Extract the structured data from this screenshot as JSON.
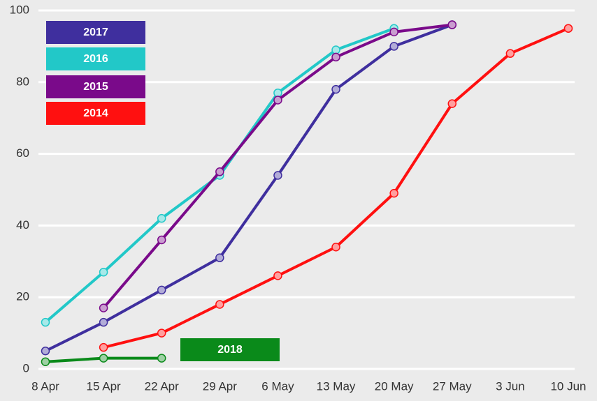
{
  "chart_data": {
    "type": "line",
    "categories": [
      "8 Apr",
      "15 Apr",
      "22 Apr",
      "29 Apr",
      "6 May",
      "13 May",
      "20 May",
      "27 May",
      "3 Jun",
      "10 Jun"
    ],
    "series": [
      {
        "name": "2017",
        "color": "#3f2f9e",
        "values": [
          5,
          13,
          22,
          31,
          54,
          78,
          90,
          96,
          null,
          null
        ]
      },
      {
        "name": "2016",
        "color": "#22c8c8",
        "values": [
          13,
          27,
          42,
          54,
          77,
          89,
          95,
          null,
          null,
          null
        ]
      },
      {
        "name": "2015",
        "color": "#7a0a8a",
        "values": [
          null,
          17,
          36,
          55,
          75,
          87,
          94,
          96,
          null,
          null
        ]
      },
      {
        "name": "2014",
        "color": "#ff1010",
        "values": [
          null,
          6,
          10,
          18,
          26,
          34,
          49,
          74,
          88,
          95
        ]
      },
      {
        "name": "2018",
        "color": "#0a8a1a",
        "values": [
          2,
          3,
          3,
          null,
          null,
          null,
          null,
          null,
          null,
          null
        ]
      }
    ],
    "ylim": [
      0,
      100
    ],
    "yticks": [
      0,
      20,
      40,
      60,
      80,
      100
    ],
    "grid": true
  }
}
